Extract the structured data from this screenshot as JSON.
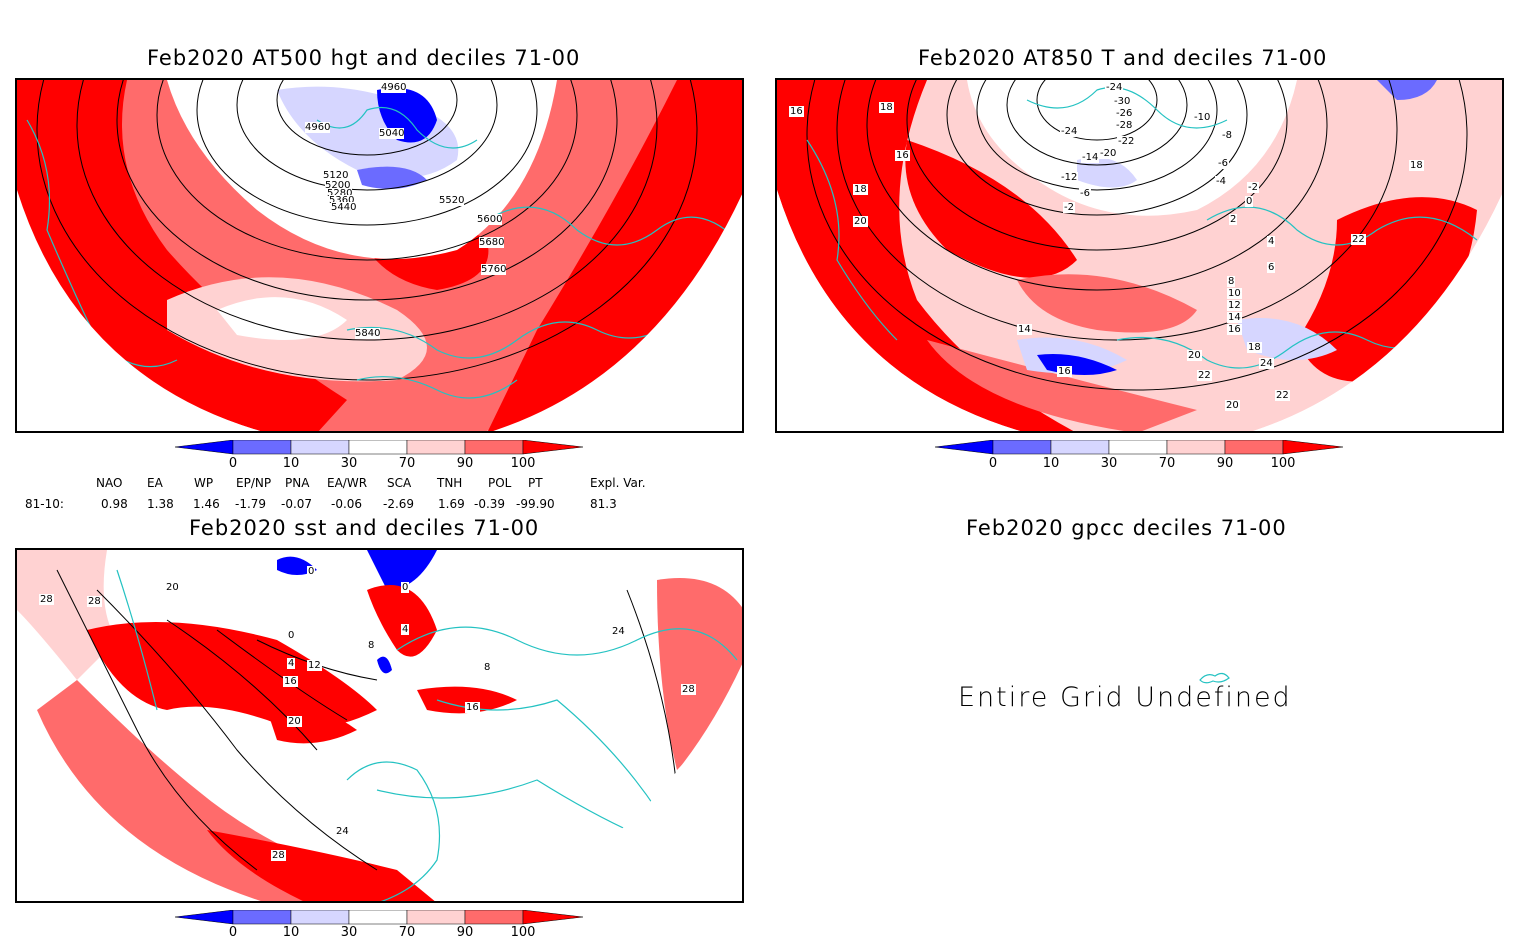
{
  "panels": {
    "hgt": {
      "title": "Feb2020 AT500 hgt and deciles 71-00",
      "contour_labels": [
        "4960",
        "4960",
        "5040",
        "5120",
        "5200",
        "5280",
        "5360",
        "5440",
        "5520",
        "5600",
        "5680",
        "5760",
        "5840"
      ]
    },
    "t850": {
      "title": "Feb2020 AT850 T and deciles 71-00",
      "contour_labels": [
        "-24",
        "-30",
        "-26",
        "-28",
        "-22",
        "-24",
        "-20",
        "-14",
        "-12",
        "-6",
        "-2",
        "-10",
        "-8",
        "-6",
        "-4",
        "-2",
        "0",
        "2",
        "4",
        "6",
        "8",
        "10",
        "12",
        "14",
        "16",
        "18",
        "20",
        "22",
        "24",
        "22",
        "20",
        "16",
        "14",
        "16",
        "18",
        "16",
        "18",
        "20",
        "22",
        "18"
      ]
    },
    "sst": {
      "title": "Feb2020 sst and deciles 71-00",
      "contour_labels": [
        "28",
        "28",
        "20",
        "0",
        "0",
        "0",
        "4",
        "8",
        "12",
        "16",
        "20",
        "24",
        "28",
        "16",
        "8",
        "24",
        "28",
        "4"
      ]
    },
    "gpcc": {
      "title": "Feb2020 gpcc deciles 71-00",
      "message": "Entire Grid Undefined"
    }
  },
  "colorbar": {
    "ticks": [
      "0",
      "10",
      "30",
      "70",
      "90",
      "100"
    ],
    "colors": [
      "#0000ff",
      "#6b6bff",
      "#d6d6ff",
      "#ffffff",
      "#ffd2d2",
      "#ff6b6b",
      "#ff0000"
    ]
  },
  "indices": {
    "headers": [
      "NAO",
      "EA",
      "WP",
      "EP/NP",
      "PNA",
      "EA/WR",
      "SCA",
      "TNH",
      "POL",
      "PT",
      "Expl. Var."
    ],
    "row_label": "81-10:",
    "values": [
      "0.98",
      "1.38",
      "1.46",
      "-1.79",
      "-0.07",
      "-0.06",
      "-2.69",
      "1.69",
      "-0.39",
      "-99.90",
      "81.3"
    ]
  }
}
